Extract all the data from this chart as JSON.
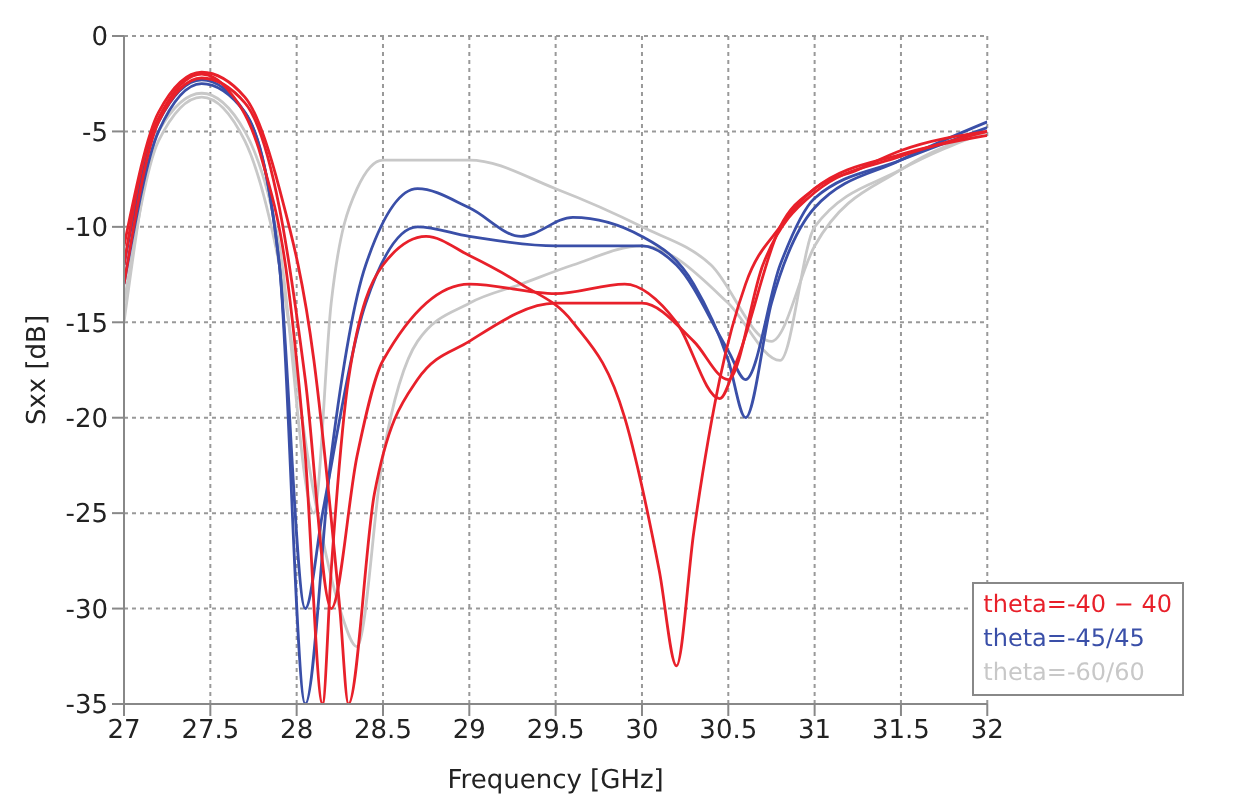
{
  "chart_data": {
    "type": "line",
    "xlabel": "Frequency [GHz]",
    "ylabel": "Sxx [dB]",
    "xlim": [
      27,
      32
    ],
    "xticks": [
      27,
      27.5,
      28,
      28.5,
      29,
      29.5,
      30,
      30.5,
      31,
      31.5,
      32
    ],
    "ylim": [
      -35,
      0
    ],
    "yticks": [
      -35,
      -30,
      -25,
      -20,
      -15,
      -10,
      -5,
      0
    ],
    "grid": true,
    "legend": "bottom right",
    "marker": "none",
    "line_style": "solid",
    "series": [
      {
        "name": "theta=-60/60",
        "color": "#c8c8c8",
        "x": [
          27,
          27.2,
          27.45,
          27.7,
          27.9,
          28.1,
          28.2,
          28.35,
          28.5,
          29,
          29.5,
          30,
          30.4,
          30.75,
          31,
          31.5,
          32
        ],
        "values": [
          -15,
          -5,
          -3,
          -5,
          -11,
          -25,
          -14,
          -8,
          -6.5,
          -6.5,
          -8,
          -10,
          -12,
          -16,
          -11,
          -7,
          -5
        ]
      },
      {
        "color": "#c8c8c8",
        "x": [
          27,
          27.2,
          27.45,
          27.7,
          27.9,
          28.1,
          28.25,
          28.35,
          28.5,
          28.7,
          29,
          29.3,
          29.6,
          30,
          30.5,
          30.8,
          31,
          31.5,
          32
        ],
        "values": [
          -14,
          -5.5,
          -3.2,
          -5.5,
          -12,
          -24,
          -30,
          -32,
          -22,
          -16,
          -14,
          -13,
          -12,
          -11,
          -14,
          -17,
          -10,
          -7,
          -5
        ]
      },
      {
        "name": "theta=-45/45",
        "color": "#3a4fa8",
        "x": [
          27,
          27.2,
          27.45,
          27.7,
          27.9,
          28.05,
          28.2,
          28.4,
          28.7,
          29,
          29.3,
          29.6,
          30,
          30.3,
          30.5,
          30.6,
          30.75,
          31,
          31.5,
          32
        ],
        "values": [
          -13,
          -5,
          -2.5,
          -4,
          -12,
          -35,
          -22,
          -12,
          -8,
          -9,
          -10.5,
          -9.5,
          -10.5,
          -13,
          -17,
          -20,
          -14,
          -9,
          -6.5,
          -4.5
        ]
      },
      {
        "color": "#3a4fa8",
        "x": [
          27,
          27.2,
          27.45,
          27.7,
          27.9,
          28.05,
          28.15,
          28.4,
          28.7,
          29,
          29.5,
          30,
          30.2,
          30.5,
          30.6,
          30.8,
          31,
          31.5,
          32
        ],
        "values": [
          -12,
          -4.5,
          -2.3,
          -4,
          -12,
          -30,
          -25,
          -14,
          -10,
          -10.5,
          -11,
          -11,
          -12,
          -16.5,
          -18,
          -12,
          -8.5,
          -6.5,
          -4.8
        ]
      },
      {
        "name": "theta=-40 − 40",
        "color": "#e8202a",
        "x": [
          27,
          27.1,
          27.25,
          27.45,
          27.6,
          27.8,
          27.95,
          28.05,
          28.15,
          28.2,
          28.3,
          28.5,
          28.75,
          29,
          29.3,
          29.6,
          29.9,
          30.1,
          30.2,
          30.3,
          30.45,
          30.6,
          30.8,
          31,
          31.25,
          31.5,
          32
        ],
        "values": [
          -12,
          -7,
          -3.5,
          -2,
          -2.8,
          -6.5,
          -13,
          -22,
          -35,
          -28,
          -18,
          -12,
          -10.5,
          -11.5,
          -13,
          -15,
          -20,
          -28,
          -33,
          -26,
          -18,
          -13,
          -10,
          -8,
          -7,
          -6,
          -5
        ]
      },
      {
        "color": "#e8202a",
        "x": [
          27,
          27.2,
          27.45,
          27.7,
          27.9,
          28.05,
          28.2,
          28.35,
          28.5,
          29,
          29.5,
          29.9,
          30.2,
          30.45,
          30.55,
          30.8,
          31,
          31.5,
          32
        ],
        "values": [
          -13,
          -4.5,
          -2.2,
          -3.5,
          -9,
          -18,
          -30,
          -22,
          -17,
          -13,
          -13.5,
          -13,
          -15,
          -19,
          -17,
          -10,
          -8,
          -6.2,
          -5.2
        ]
      },
      {
        "color": "#e8202a",
        "x": [
          27,
          27.2,
          27.45,
          27.7,
          27.9,
          28.1,
          28.25,
          28.3,
          28.45,
          28.7,
          29,
          29.5,
          30,
          30.3,
          30.5,
          30.7,
          31,
          31.5,
          32
        ],
        "values": [
          -11,
          -4,
          -1.9,
          -3.2,
          -8,
          -17,
          -30,
          -35,
          -24,
          -18,
          -16,
          -14,
          -14,
          -16,
          -18,
          -12,
          -8.2,
          -6.3,
          -5
        ]
      }
    ]
  }
}
